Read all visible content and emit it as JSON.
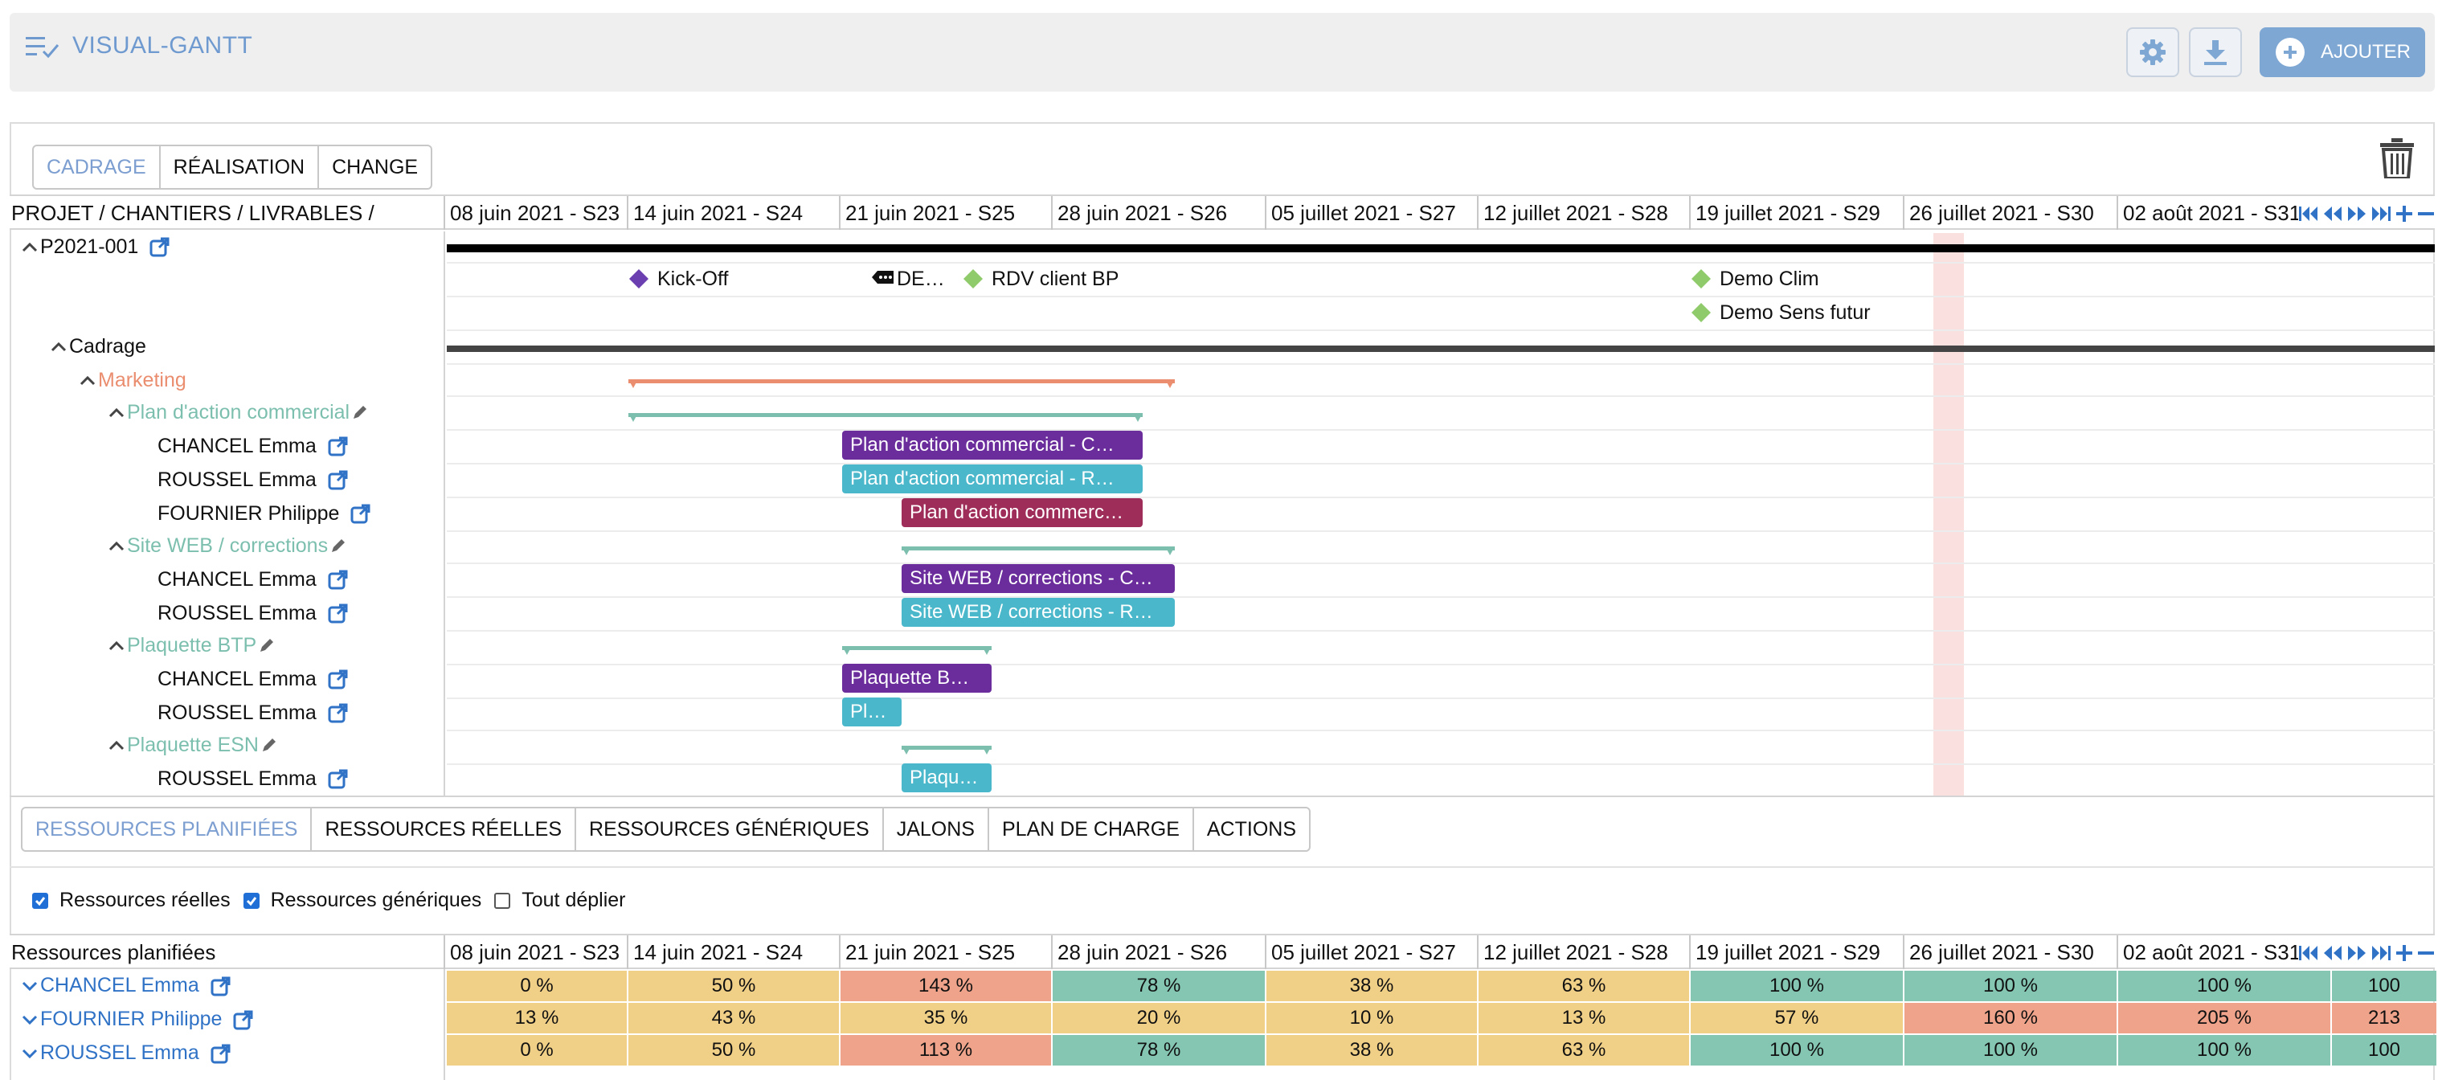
{
  "app": {
    "title": "VISUAL-GANTT",
    "add_label": "AJOUTER"
  },
  "phase_tabs": [
    "CADRAGE",
    "RÉALISATION",
    "CHANGE"
  ],
  "gantt": {
    "left_header": "PROJET / CHANTIERS / LIVRABLES /",
    "weeks": [
      "08 juin 2021 - S23",
      "14 juin 2021 - S24",
      "21 juin 2021 - S25",
      "28 juin 2021 - S26",
      "05 juillet 2021 - S27",
      "12 juillet 2021 - S28",
      "19 juillet 2021 - S29",
      "26 juillet 2021 - S30",
      "02 août 2021 - S31"
    ],
    "tree": [
      {
        "label": "P2021-001",
        "level": 0,
        "type": "project",
        "expanded": true,
        "link": true
      },
      {
        "label": "Cadrage",
        "level": 1,
        "type": "phase",
        "expanded": true
      },
      {
        "label": "Marketing",
        "level": 2,
        "type": "workstream",
        "expanded": true
      },
      {
        "label": "Plan d'action commercial",
        "level": 3,
        "type": "deliverable",
        "expanded": true,
        "editable": true
      },
      {
        "label": "CHANCEL Emma",
        "level": 4,
        "type": "resource",
        "link": true
      },
      {
        "label": "ROUSSEL Emma",
        "level": 4,
        "type": "resource",
        "link": true
      },
      {
        "label": "FOURNIER Philippe",
        "level": 4,
        "type": "resource",
        "link": true
      },
      {
        "label": "Site WEB / corrections",
        "level": 3,
        "type": "deliverable",
        "expanded": true,
        "editable": true
      },
      {
        "label": "CHANCEL Emma",
        "level": 4,
        "type": "resource",
        "link": true
      },
      {
        "label": "ROUSSEL Emma",
        "level": 4,
        "type": "resource",
        "link": true
      },
      {
        "label": "Plaquette BTP",
        "level": 3,
        "type": "deliverable",
        "expanded": true,
        "editable": true
      },
      {
        "label": "CHANCEL Emma",
        "level": 4,
        "type": "resource",
        "link": true
      },
      {
        "label": "ROUSSEL Emma",
        "level": 4,
        "type": "resource",
        "link": true
      },
      {
        "label": "Plaquette ESN",
        "level": 3,
        "type": "deliverable",
        "expanded": true,
        "editable": true
      },
      {
        "label": "ROUSSEL Emma",
        "level": 4,
        "type": "resource",
        "link": true
      }
    ],
    "milestones": [
      {
        "label": "Kick-Off",
        "color": "#6b3fb0",
        "kind": "diamond"
      },
      {
        "label": "DE…",
        "kind": "tag"
      },
      {
        "label": "RDV client BP",
        "color": "#8fcb6a",
        "kind": "diamond"
      },
      {
        "label": "Demo Clim",
        "color": "#8fcb6a",
        "kind": "diamond"
      },
      {
        "label": "Demo Sens futur",
        "color": "#8fcb6a",
        "kind": "diamond"
      }
    ],
    "bars": [
      {
        "label": "Plan d'action commercial - C…",
        "color": "purple"
      },
      {
        "label": "Plan d'action commercial - R…",
        "color": "cyan"
      },
      {
        "label": "Plan d'action commerc…",
        "color": "wine"
      },
      {
        "label": "Site WEB / corrections - C…",
        "color": "purple"
      },
      {
        "label": "Site WEB / corrections - R…",
        "color": "cyan"
      },
      {
        "label": "Plaquette B…",
        "color": "purple"
      },
      {
        "label": "Pl…",
        "color": "cyan"
      },
      {
        "label": "Plaqu…",
        "color": "cyan"
      }
    ],
    "colors": {
      "project_bar": "#000000",
      "phase_bar": "#444444",
      "marketing_bar": "#ea8e6f",
      "deliverable_bar": "#7cbfae",
      "today_band": "#fbe0e0"
    }
  },
  "resource_tabs": [
    "RESSOURCES PLANIFIÉES",
    "RESSOURCES RÉELLES",
    "RESSOURCES GÉNÉRIQUES",
    "JALONS",
    "PLAN DE CHARGE",
    "ACTIONS"
  ],
  "filters": [
    {
      "label": "Ressources réelles",
      "checked": true
    },
    {
      "label": "Ressources génériques",
      "checked": true
    },
    {
      "label": "Tout déplier",
      "checked": false
    }
  ],
  "resources": {
    "header": "Ressources planifiées",
    "rows": [
      {
        "name": "CHANCEL Emma",
        "values": [
          "0 %",
          "50 %",
          "143 %",
          "78 %",
          "38 %",
          "63 %",
          "100 %",
          "100 %",
          "100 %",
          "100"
        ]
      },
      {
        "name": "FOURNIER Philippe",
        "values": [
          "13 %",
          "43 %",
          "35 %",
          "20 %",
          "10 %",
          "13 %",
          "57 %",
          "160 %",
          "205 %",
          "213"
        ]
      },
      {
        "name": "ROUSSEL Emma",
        "values": [
          "0 %",
          "50 %",
          "113 %",
          "78 %",
          "38 %",
          "63 %",
          "100 %",
          "100 %",
          "100 %",
          "100"
        ]
      }
    ],
    "level_colors": {
      "low": "#f0cf87",
      "ok": "#84c6b2",
      "over": "#eea38a"
    }
  }
}
